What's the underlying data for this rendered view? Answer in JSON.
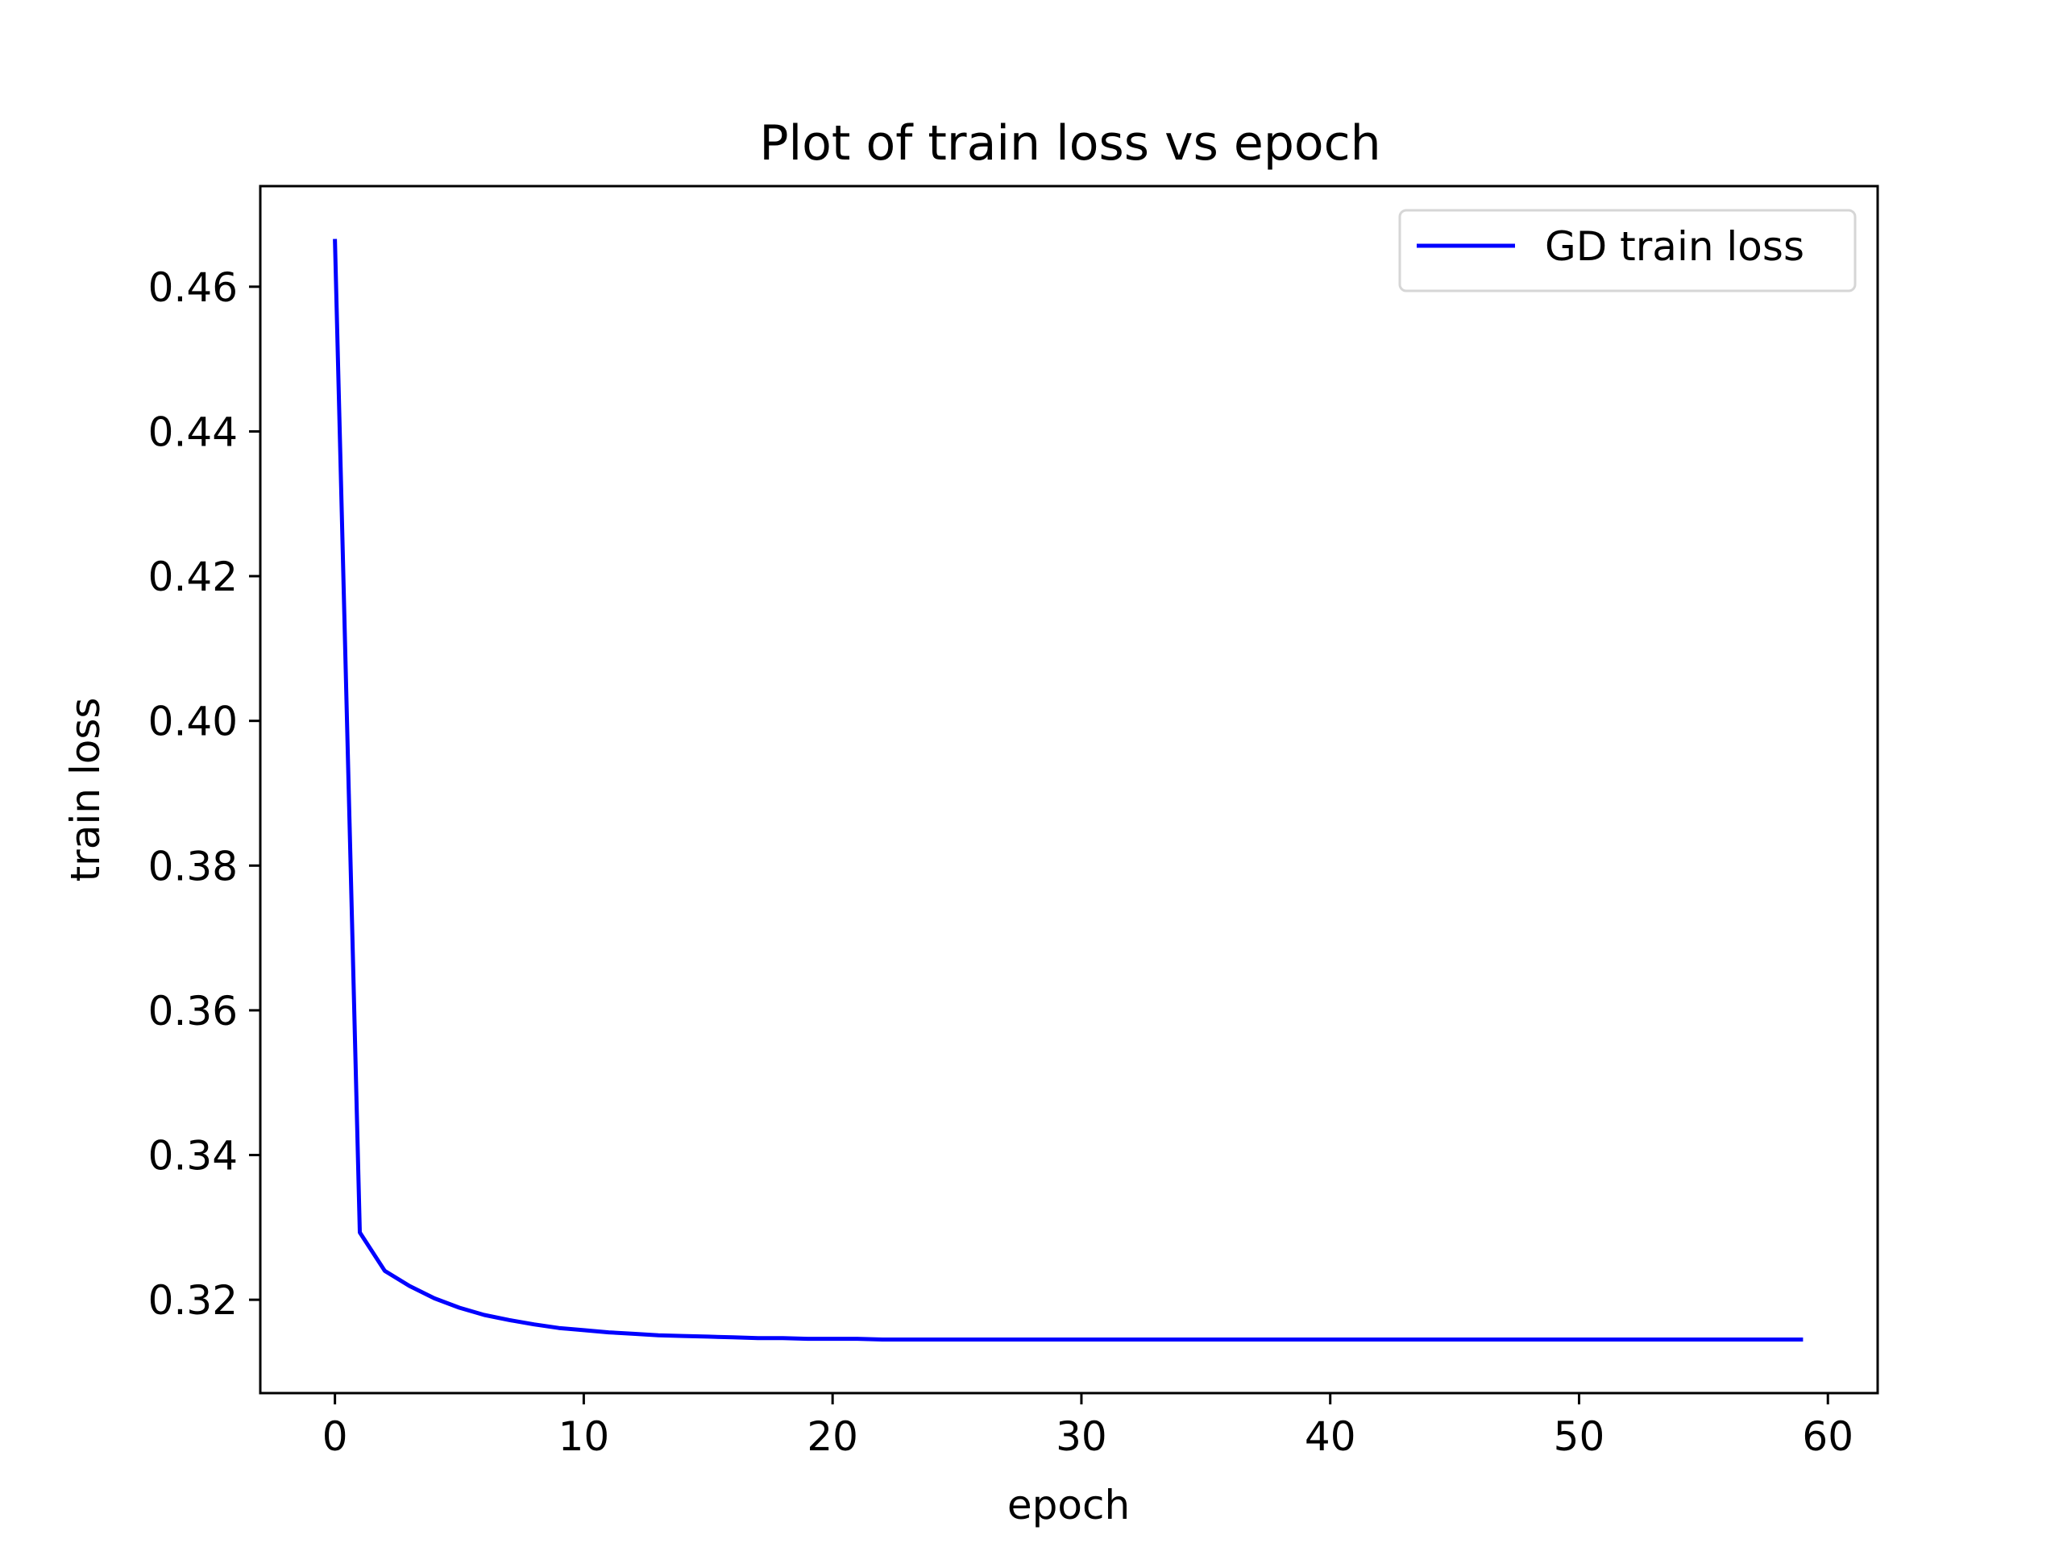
{
  "chart_data": {
    "type": "line",
    "title": "Plot of train loss vs epoch",
    "xlabel": "epoch",
    "ylabel": "train loss",
    "xlim": [
      -3,
      62
    ],
    "ylim": [
      0.3071,
      0.4739
    ],
    "xticks": [
      0,
      10,
      20,
      30,
      40,
      50,
      60
    ],
    "xtick_labels": [
      "0",
      "10",
      "20",
      "30",
      "40",
      "50",
      "60"
    ],
    "yticks": [
      0.32,
      0.34,
      0.36,
      0.38,
      0.4,
      0.42,
      0.44,
      0.46
    ],
    "ytick_labels": [
      "0.32",
      "0.34",
      "0.36",
      "0.38",
      "0.40",
      "0.42",
      "0.44",
      "0.46"
    ],
    "grid": false,
    "legend_position": "top-right",
    "series": [
      {
        "name": "GD train loss",
        "color": "#0000ff",
        "x": [
          0,
          1,
          2,
          3,
          4,
          5,
          6,
          7,
          8,
          9,
          10,
          11,
          12,
          13,
          14,
          15,
          16,
          17,
          18,
          19,
          20,
          21,
          22,
          23,
          24,
          25,
          26,
          27,
          28,
          29,
          30,
          31,
          32,
          33,
          34,
          35,
          36,
          37,
          38,
          39,
          40,
          41,
          42,
          43,
          44,
          45,
          46,
          47,
          48,
          49,
          50,
          51,
          52,
          53,
          54,
          55,
          56,
          57,
          58,
          59
        ],
        "y": [
          0.4666,
          0.3293,
          0.324,
          0.3219,
          0.3202,
          0.3189,
          0.3179,
          0.3172,
          0.3166,
          0.3161,
          0.3158,
          0.3155,
          0.3153,
          0.3151,
          0.315,
          0.3149,
          0.3148,
          0.3147,
          0.3147,
          0.3146,
          0.3146,
          0.3146,
          0.3145,
          0.3145,
          0.3145,
          0.3145,
          0.3145,
          0.3145,
          0.3145,
          0.3145,
          0.3145,
          0.3145,
          0.3145,
          0.3145,
          0.3145,
          0.3145,
          0.3145,
          0.3145,
          0.3145,
          0.3145,
          0.3145,
          0.3145,
          0.3145,
          0.3145,
          0.3145,
          0.3145,
          0.3145,
          0.3145,
          0.3145,
          0.3145,
          0.3145,
          0.3145,
          0.3145,
          0.3145,
          0.3145,
          0.3145,
          0.3145,
          0.3145,
          0.3145,
          0.3145
        ]
      }
    ]
  }
}
